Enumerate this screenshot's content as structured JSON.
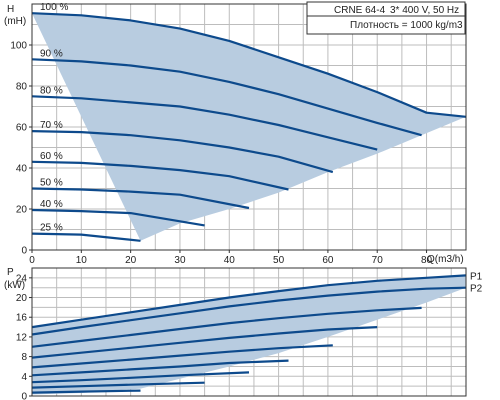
{
  "header": {
    "model": "CRNE 64-4",
    "supply": "3* 400 V, 50 Hz",
    "density": "Плотность = 1000 kg/m3"
  },
  "colors": {
    "envelope_fill": "#b8cce0",
    "curve": "#0d4a8c",
    "grid": "#bdbdbd",
    "axis": "#333333"
  },
  "chart_data": [
    {
      "type": "line",
      "name": "head",
      "ylabel_top": "H",
      "ylabel_unit": "(mH)",
      "xlabel": "Q(m3/h)",
      "xlim": [
        0,
        88
      ],
      "ylim": [
        0,
        120
      ],
      "xticks": [
        0,
        10,
        20,
        30,
        40,
        50,
        60,
        70,
        80
      ],
      "yticks": [
        0,
        20,
        40,
        60,
        80,
        100
      ],
      "grid": true,
      "envelope": {
        "upper": [
          [
            0,
            115.5
          ],
          [
            10,
            114.5
          ],
          [
            20,
            112
          ],
          [
            30,
            108
          ],
          [
            40,
            102
          ],
          [
            50,
            94
          ],
          [
            60,
            86
          ],
          [
            70,
            77
          ],
          [
            80,
            67
          ],
          [
            88,
            65
          ]
        ],
        "lower": [
          [
            88,
            65
          ],
          [
            80,
            57
          ],
          [
            70,
            47
          ],
          [
            60,
            38
          ],
          [
            50,
            28
          ],
          [
            40,
            20
          ],
          [
            30,
            13
          ],
          [
            22,
            4.5
          ]
        ]
      },
      "series": [
        {
          "label": "100 %",
          "x": [
            0,
            10,
            20,
            30,
            40,
            50,
            60,
            70,
            80,
            88
          ],
          "y": [
            115.5,
            114.5,
            112,
            108,
            102,
            94,
            86,
            77,
            67,
            65
          ]
        },
        {
          "label": "90 %",
          "x": [
            0,
            10,
            20,
            30,
            40,
            50,
            60,
            70,
            79
          ],
          "y": [
            93,
            92,
            90,
            87,
            82,
            76,
            69,
            62,
            56
          ]
        },
        {
          "label": "80 %",
          "x": [
            0,
            10,
            20,
            30,
            40,
            50,
            60,
            70
          ],
          "y": [
            75,
            74,
            72,
            70,
            66,
            61,
            55,
            49
          ]
        },
        {
          "label": "70 %",
          "x": [
            0,
            10,
            20,
            30,
            40,
            50,
            61
          ],
          "y": [
            58,
            57.5,
            56,
            53.5,
            50,
            45.5,
            38
          ]
        },
        {
          "label": "60 %",
          "x": [
            0,
            10,
            20,
            30,
            40,
            52
          ],
          "y": [
            43,
            42.5,
            41,
            39,
            36,
            29.5
          ]
        },
        {
          "label": "50 %",
          "x": [
            0,
            10,
            20,
            30,
            44
          ],
          "y": [
            30,
            29.5,
            28.5,
            27,
            20.5
          ]
        },
        {
          "label": "40 %",
          "x": [
            0,
            10,
            20,
            35
          ],
          "y": [
            19.5,
            19,
            18,
            12
          ]
        },
        {
          "label": "25 %",
          "x": [
            0,
            10,
            22
          ],
          "y": [
            8,
            7.5,
            4.5
          ]
        }
      ]
    },
    {
      "type": "line",
      "name": "power",
      "ylabel_top": "P",
      "ylabel_unit": "(kW)",
      "xlim": [
        0,
        88
      ],
      "ylim": [
        0,
        26
      ],
      "yticks": [
        0,
        4,
        8,
        12,
        16,
        20,
        24
      ],
      "grid": true,
      "envelope": {
        "upper": [
          [
            0,
            14
          ],
          [
            10,
            15.5
          ],
          [
            20,
            17
          ],
          [
            30,
            18.5
          ],
          [
            40,
            20
          ],
          [
            50,
            21.3
          ],
          [
            60,
            22.5
          ],
          [
            70,
            23.4
          ],
          [
            80,
            24
          ],
          [
            88,
            24.5
          ]
        ],
        "lower": [
          [
            88,
            22
          ],
          [
            80,
            19
          ],
          [
            70,
            15.5
          ],
          [
            60,
            12
          ],
          [
            50,
            8.7
          ],
          [
            40,
            6
          ],
          [
            30,
            3.5
          ],
          [
            22,
            1.5
          ],
          [
            10,
            0.6
          ],
          [
            0,
            0.3
          ]
        ]
      },
      "series": [
        {
          "label": "P1",
          "x": [
            0,
            10,
            20,
            30,
            40,
            50,
            60,
            70,
            80,
            88
          ],
          "y": [
            14,
            15.5,
            17,
            18.5,
            20,
            21.3,
            22.5,
            23.4,
            24,
            24.5
          ]
        },
        {
          "label": "P2",
          "x": [
            0,
            10,
            20,
            30,
            40,
            50,
            60,
            70,
            80,
            88
          ],
          "y": [
            12.5,
            14,
            15.4,
            16.8,
            18.2,
            19.4,
            20.4,
            21.2,
            21.8,
            22
          ]
        },
        {
          "label": "",
          "x": [
            0,
            10,
            20,
            30,
            40,
            50,
            60,
            70,
            79
          ],
          "y": [
            10,
            11.2,
            12.4,
            13.6,
            14.8,
            15.8,
            16.7,
            17.4,
            17.9
          ]
        },
        {
          "label": "",
          "x": [
            0,
            10,
            20,
            30,
            40,
            50,
            60,
            70
          ],
          "y": [
            7.8,
            8.8,
            9.8,
            10.8,
            11.8,
            12.7,
            13.5,
            14
          ]
        },
        {
          "label": "",
          "x": [
            0,
            10,
            20,
            30,
            40,
            50,
            61
          ],
          "y": [
            5.8,
            6.6,
            7.4,
            8.2,
            9,
            9.7,
            10.3
          ]
        },
        {
          "label": "",
          "x": [
            0,
            10,
            20,
            30,
            40,
            52
          ],
          "y": [
            4.2,
            4.8,
            5.4,
            6,
            6.7,
            7.2
          ]
        },
        {
          "label": "",
          "x": [
            0,
            10,
            20,
            30,
            44
          ],
          "y": [
            2.8,
            3.2,
            3.7,
            4.2,
            4.8
          ]
        },
        {
          "label": "",
          "x": [
            0,
            10,
            20,
            35
          ],
          "y": [
            1.7,
            2,
            2.3,
            2.7
          ]
        },
        {
          "label": "",
          "x": [
            0,
            10,
            22
          ],
          "y": [
            0.7,
            0.9,
            1.1
          ]
        }
      ]
    }
  ]
}
